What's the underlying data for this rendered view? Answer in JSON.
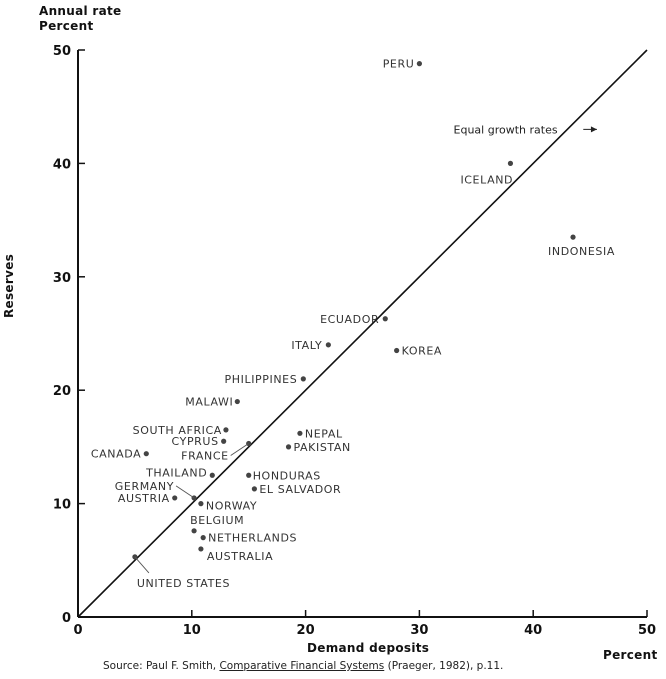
{
  "chart_data": {
    "type": "scatter",
    "y_heading_line1": "Annual rate",
    "y_heading_line2": "Percent",
    "xlabel": "Demand deposits",
    "x_unit": "Percent",
    "ylabel": "Reserves",
    "xlim": [
      0,
      50
    ],
    "ylim": [
      0,
      50
    ],
    "xticks": [
      "0",
      "10",
      "20",
      "30",
      "40",
      "50"
    ],
    "yticks": [
      "0",
      "10",
      "20",
      "30",
      "40",
      "50"
    ],
    "grid": false,
    "reference_line": {
      "label": "Equal growth rates",
      "from": [
        0,
        0
      ],
      "to": [
        50,
        50
      ]
    },
    "points": [
      {
        "label": "PERU",
        "x": 30.0,
        "y": 48.8
      },
      {
        "label": "ICELAND",
        "x": 38.0,
        "y": 40.0
      },
      {
        "label": "INDONESIA",
        "x": 43.5,
        "y": 33.5
      },
      {
        "label": "ECUADOR",
        "x": 27.0,
        "y": 26.3
      },
      {
        "label": "ITALY",
        "x": 22.0,
        "y": 24.0
      },
      {
        "label": "KOREA",
        "x": 28.0,
        "y": 23.5
      },
      {
        "label": "PHILIPPINES",
        "x": 19.8,
        "y": 21.0
      },
      {
        "label": "MALAWI",
        "x": 14.0,
        "y": 19.0
      },
      {
        "label": "SOUTH AFRICA",
        "x": 13.0,
        "y": 16.5
      },
      {
        "label": "NEPAL",
        "x": 19.5,
        "y": 16.2
      },
      {
        "label": "CYPRUS",
        "x": 12.8,
        "y": 15.5
      },
      {
        "label": "FRANCE",
        "x": 15.0,
        "y": 15.3
      },
      {
        "label": "PAKISTAN",
        "x": 18.5,
        "y": 15.0
      },
      {
        "label": "CANADA",
        "x": 6.0,
        "y": 14.4
      },
      {
        "label": "THAILAND",
        "x": 11.8,
        "y": 12.5
      },
      {
        "label": "HONDURAS",
        "x": 15.0,
        "y": 12.5
      },
      {
        "label": "GERMANY",
        "x": 10.2,
        "y": 10.5
      },
      {
        "label": "EL SALVADOR",
        "x": 15.5,
        "y": 11.3
      },
      {
        "label": "AUSTRIA",
        "x": 8.5,
        "y": 10.5
      },
      {
        "label": "NORWAY",
        "x": 10.8,
        "y": 10.0
      },
      {
        "label": "BELGIUM",
        "x": 10.2,
        "y": 7.6
      },
      {
        "label": "NETHERLANDS",
        "x": 11.0,
        "y": 7.0
      },
      {
        "label": "AUSTRALIA",
        "x": 10.8,
        "y": 6.0
      },
      {
        "label": "UNITED STATES",
        "x": 5.0,
        "y": 5.3
      }
    ]
  },
  "source": {
    "prefix": "Source: Paul F. Smith, ",
    "title": "Comparative Financial Systems",
    "suffix": " (Praeger, 1982), p.11."
  }
}
